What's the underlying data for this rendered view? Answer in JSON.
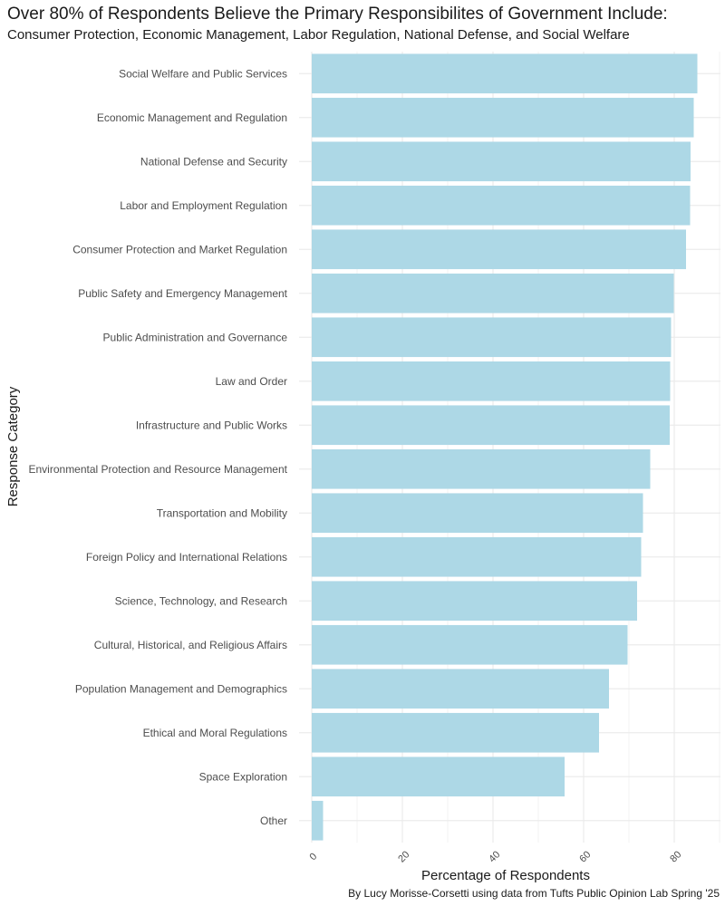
{
  "header": {
    "title": "Over 80% of Respondents Believe the Primary Responsibilites of Government Include:",
    "subtitle": "Consumer Protection, Economic Management, Labor Regulation, National Defense, and Social Welfare"
  },
  "caption": "By Lucy Morisse-Corsetti using data from Tufts Public Opinion Lab Spring '25",
  "colors": {
    "bar": "#add8e6",
    "grid": "#ebebeb",
    "background": "#ffffff"
  },
  "chart_data": {
    "type": "bar",
    "orientation": "horizontal",
    "xlabel": "Percentage of Respondents",
    "ylabel": "Response Category",
    "xlim": [
      0,
      89
    ],
    "xticks": [
      0,
      20,
      40,
      60,
      80
    ],
    "grid": true,
    "legend": "none",
    "categories": [
      "Social Welfare and Public Services",
      "Economic Management and Regulation",
      "National Defense and Security",
      "Labor and Employment Regulation",
      "Consumer Protection and Market Regulation",
      "Public Safety and Emergency Management",
      "Public Administration and Governance",
      "Law and Order",
      "Infrastructure and Public Works",
      "Environmental Protection and Resource Management",
      "Transportation and Mobility",
      "Foreign Policy and International Relations",
      "Science, Technology, and Research",
      "Cultural, Historical, and Religious Affairs",
      "Population Management and Demographics",
      "Ethical and Moral Regulations",
      "Space Exploration",
      "Other"
    ],
    "values": [
      85.1,
      84.3,
      83.6,
      83.5,
      82.6,
      79.9,
      79.3,
      79.1,
      79.0,
      74.7,
      73.1,
      72.7,
      71.8,
      69.7,
      65.6,
      63.4,
      55.8,
      2.5
    ]
  }
}
